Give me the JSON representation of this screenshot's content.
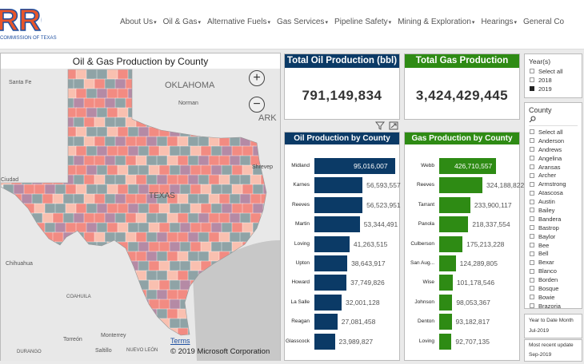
{
  "header": {
    "logo_text": "RRC",
    "logo_subtext": "COMMISSION OF TEXAS",
    "nav": [
      {
        "label": "About Us",
        "dropdown": true
      },
      {
        "label": "Oil & Gas",
        "dropdown": true
      },
      {
        "label": "Alternative Fuels",
        "dropdown": true
      },
      {
        "label": "Gas Services",
        "dropdown": true
      },
      {
        "label": "Pipeline Safety",
        "dropdown": true
      },
      {
        "label": "Mining & Exploration",
        "dropdown": true
      },
      {
        "label": "Hearings",
        "dropdown": true
      },
      {
        "label": "General Co",
        "dropdown": false
      }
    ],
    "caret": "▾"
  },
  "map": {
    "title": "Oil & Gas Production by County",
    "labels": {
      "oklahoma": "OKLAHOMA",
      "ark": "ARK",
      "santa_fe": "Santa Fe",
      "norman": "Norman",
      "ciudad": "Ciudad",
      "chihuahua": "Chihuahua",
      "coahuila": "COAHUILA",
      "texas": "TEXAS",
      "torreon": "Torreón",
      "monterrey": "Monterrey",
      "durango": "DURANGO",
      "saltillo": "Saltillo",
      "nuevo_leon": "NUEVO LEÓN",
      "shreveport": "Shrevep"
    },
    "zoom_in": "+",
    "zoom_out": "−",
    "terms": "Terms",
    "copyright": "© 2019 Microsoft Corporation",
    "county_colors": [
      "#f28b82",
      "#2ec4b6",
      "#f7d55c",
      "#b58aa5",
      "#7d7d7d",
      "#a89a3d",
      "#f4a79d",
      "#9ed9ec",
      "#c9a0c2",
      "#8fa3a6",
      "#e8d8a0",
      "#6e5b6e",
      "#f9c0b0",
      "#5aa9a0",
      "#d4b15a",
      "#a0607a",
      "#cfcfcf",
      "#e59a84"
    ]
  },
  "kpis": {
    "oil": {
      "title": "Total Oil Production (bbl)",
      "value": "791,149,834",
      "color": "#0b3a66"
    },
    "gas": {
      "title": "Total Gas Production (mcf)",
      "value": "3,424,429,445",
      "color": "#2e8b14"
    }
  },
  "icons": {
    "filter": "filter-icon",
    "expand": "focus-mode-icon"
  },
  "chart_data": [
    {
      "type": "bar",
      "orientation": "horizontal",
      "title": "Oil Production by County (bbl)",
      "color": "#0b3a66",
      "categories": [
        "Midland",
        "Karnes",
        "Reeves",
        "Martin",
        "Loving",
        "Upton",
        "Howard",
        "La Salle",
        "Reagan",
        "Glasscock"
      ],
      "values": [
        95016007,
        56593557,
        56523951,
        53344491,
        41263515,
        38643917,
        37749826,
        32001128,
        27081458,
        23989827
      ],
      "labels": [
        "95,016,007",
        "56,593,557",
        "56,523,951",
        "53,344,491",
        "41,263,515",
        "38,643,917",
        "37,749,826",
        "32,001,128",
        "27,081,458",
        "23,989,827"
      ]
    },
    {
      "type": "bar",
      "orientation": "horizontal",
      "title": "Gas Production by County (mcf)",
      "color": "#2e8b14",
      "categories": [
        "Webb",
        "Reeves",
        "Tarrant",
        "Panola",
        "Culberson",
        "San Aug...",
        "Wise",
        "Johnson",
        "Denton",
        "Loving"
      ],
      "values": [
        426710557,
        324188822,
        233900117,
        218337554,
        175213228,
        124289805,
        101178546,
        98053367,
        93182817,
        92707135
      ],
      "labels": [
        "426,710,557",
        "324,188,822",
        "233,900,117",
        "218,337,554",
        "175,213,228",
        "124,289,805",
        "101,178,546",
        "98,053,367",
        "93,182,817",
        "92,707,135"
      ]
    }
  ],
  "slicers": {
    "years": {
      "title": "Year(s)",
      "options": [
        {
          "label": "Select all",
          "checked": false
        },
        {
          "label": "2018",
          "checked": false
        },
        {
          "label": "2019",
          "checked": true
        }
      ]
    },
    "county": {
      "title": "County",
      "options": [
        "Select all",
        "Anderson",
        "Andrews",
        "Angelina",
        "Aransas",
        "Archer",
        "Armstrong",
        "Atascosa",
        "Austin",
        "Bailey",
        "Bandera",
        "Bastrop",
        "Baylor",
        "Bee",
        "Bell",
        "Bexar",
        "Blanco",
        "Borden",
        "Bosque",
        "Bowie",
        "Brazoria"
      ]
    },
    "ytd": {
      "title": "Year to Date Month",
      "value": "Jul-2019"
    },
    "recent": {
      "title": "Most recent update",
      "value": "Sep-2019"
    }
  }
}
